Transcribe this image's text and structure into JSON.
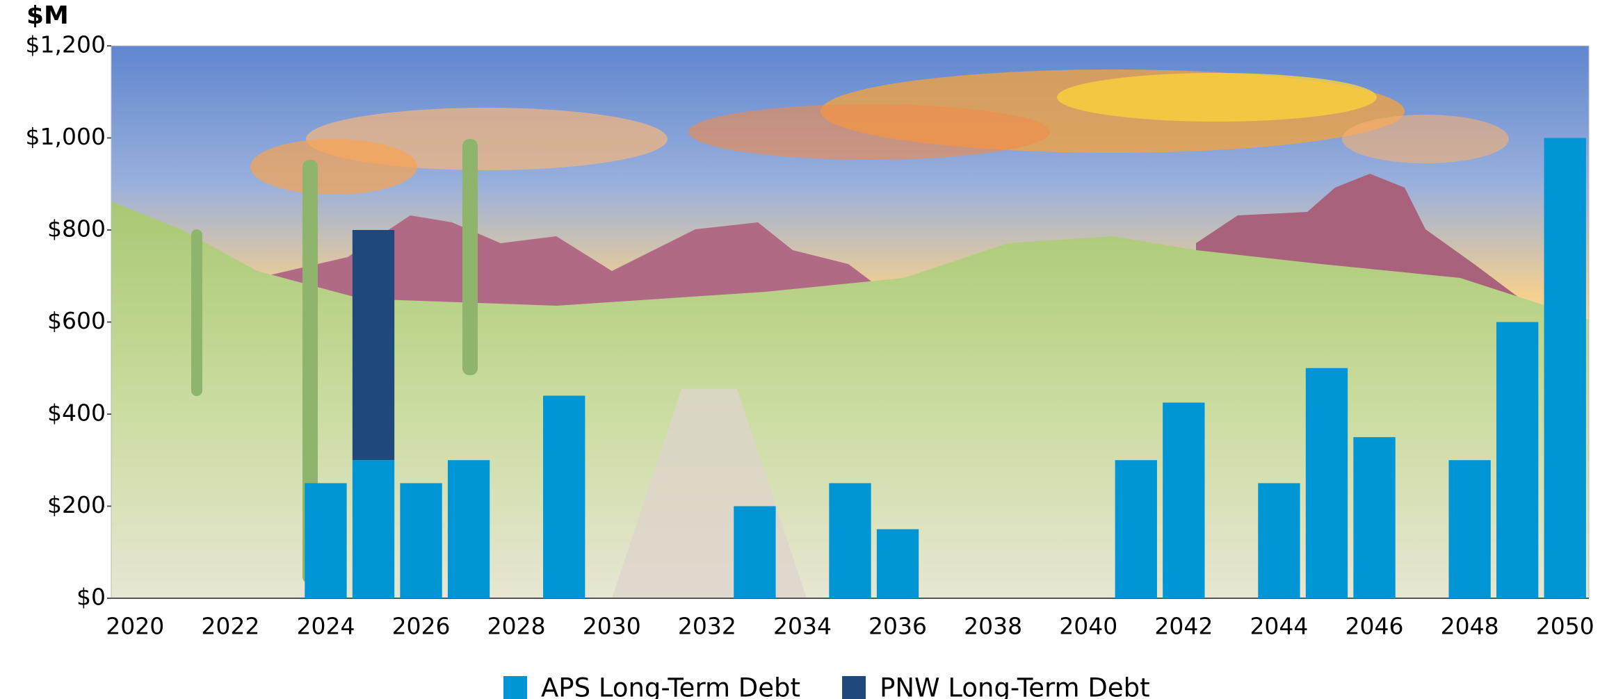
{
  "chart_data": {
    "type": "stacked_bar",
    "y_axis_label": "$M",
    "categories": [
      "2020",
      null,
      "2022",
      null,
      "2024",
      null,
      "2026",
      null,
      "2028",
      null,
      "2030",
      null,
      "2032",
      null,
      "2034",
      null,
      "2036",
      null,
      "2038",
      null,
      "2040",
      null,
      "2042",
      null,
      "2044",
      null,
      "2046",
      null,
      "2048",
      null,
      "2050"
    ],
    "series": [
      {
        "name": "APS Long-Term Debt",
        "color": "#0096d6",
        "values": [
          0,
          0,
          0,
          0,
          250,
          300,
          250,
          300,
          0,
          440,
          0,
          0,
          0,
          200,
          0,
          250,
          150,
          0,
          0,
          0,
          0,
          300,
          425,
          0,
          250,
          500,
          350,
          0,
          300,
          600,
          1000
        ]
      },
      {
        "name": "PNW Long-Term Debt",
        "color": "#1f497d",
        "values": [
          0,
          0,
          0,
          0,
          0,
          500,
          0,
          0,
          0,
          0,
          0,
          0,
          0,
          0,
          0,
          0,
          0,
          0,
          0,
          0,
          0,
          0,
          0,
          0,
          0,
          0,
          0,
          0,
          0,
          0,
          0
        ]
      }
    ],
    "ylim": [
      0,
      1200
    ],
    "yticks": [
      {
        "value": 0,
        "label": "$0"
      },
      {
        "value": 200,
        "label": "$200"
      },
      {
        "value": 400,
        "label": "$400"
      },
      {
        "value": 600,
        "label": "$600"
      },
      {
        "value": 800,
        "label": "$800"
      },
      {
        "value": 1000,
        "label": "$1,000"
      },
      {
        "value": 1200,
        "label": "$1,200"
      }
    ],
    "legend": "bottom"
  }
}
